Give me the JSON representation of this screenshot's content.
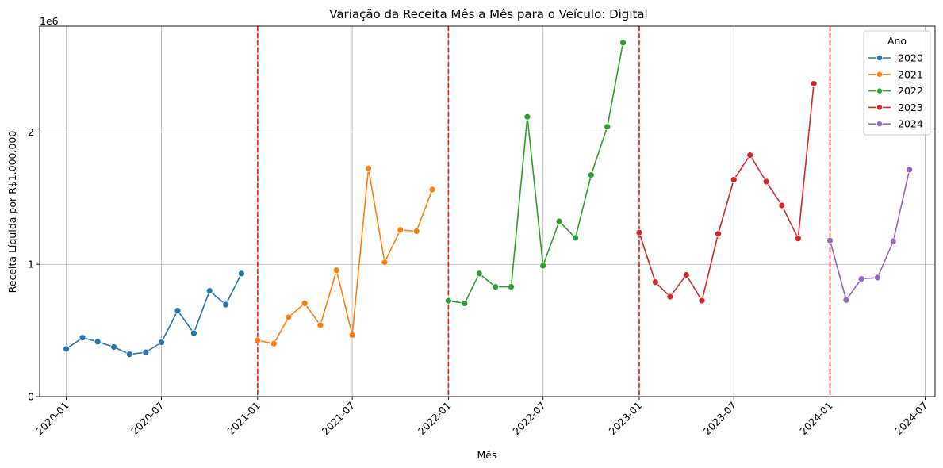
{
  "chart_data": {
    "type": "line",
    "title": "Variação da Receita Mês a Mês para o Veículo: Digital",
    "xlabel": "Mês",
    "ylabel": "Receita Líquida por R$1.000.000",
    "y_scale_note": "1e6",
    "xlim": [
      "2019-11-11",
      "2024-07-20"
    ],
    "ylim": [
      0,
      2800000
    ],
    "x_ticks": [
      "2020-01",
      "2020-07",
      "2021-01",
      "2021-07",
      "2022-01",
      "2022-07",
      "2023-01",
      "2023-07",
      "2024-01",
      "2024-07"
    ],
    "y_ticks": [
      {
        "value": 0,
        "label": "0"
      },
      {
        "value": 1000000,
        "label": "1"
      },
      {
        "value": 2000000,
        "label": "2"
      }
    ],
    "grid": true,
    "legend": {
      "title": "Ano",
      "position": "top-right"
    },
    "vlines": [
      "2021-01-01",
      "2022-01-01",
      "2023-01-01",
      "2024-01-01"
    ],
    "series": [
      {
        "name": "2020",
        "color": "#1f77b4",
        "x": [
          "2020-01-01",
          "2020-02-01",
          "2020-03-01",
          "2020-04-01",
          "2020-05-01",
          "2020-06-01",
          "2020-07-01",
          "2020-08-01",
          "2020-09-01",
          "2020-10-01",
          "2020-11-01",
          "2020-12-01"
        ],
        "values": [
          360000,
          445000,
          415000,
          375000,
          320000,
          335000,
          410000,
          650000,
          480000,
          800000,
          695000,
          930000
        ]
      },
      {
        "name": "2021",
        "color": "#ff7f0e",
        "x": [
          "2021-01-01",
          "2021-02-01",
          "2021-03-01",
          "2021-04-01",
          "2021-05-01",
          "2021-06-01",
          "2021-07-01",
          "2021-08-01",
          "2021-09-01",
          "2021-10-01",
          "2021-11-01",
          "2021-12-01"
        ],
        "values": [
          425000,
          400000,
          600000,
          705000,
          540000,
          955000,
          465000,
          1725000,
          1015000,
          1260000,
          1250000,
          1565000
        ]
      },
      {
        "name": "2022",
        "color": "#2ca02c",
        "x": [
          "2022-01-01",
          "2022-02-01",
          "2022-03-01",
          "2022-04-01",
          "2022-05-01",
          "2022-06-01",
          "2022-07-01",
          "2022-08-01",
          "2022-09-01",
          "2022-10-01",
          "2022-11-01",
          "2022-12-01"
        ],
        "values": [
          725000,
          705000,
          930000,
          830000,
          830000,
          2115000,
          990000,
          1325000,
          1200000,
          1675000,
          2040000,
          2675000
        ]
      },
      {
        "name": "2023",
        "color": "#d62728",
        "x": [
          "2023-01-01",
          "2023-02-01",
          "2023-03-01",
          "2023-04-01",
          "2023-05-01",
          "2023-06-01",
          "2023-07-01",
          "2023-08-01",
          "2023-09-01",
          "2023-10-01",
          "2023-11-01",
          "2023-12-01"
        ],
        "values": [
          1240000,
          865000,
          755000,
          920000,
          725000,
          1230000,
          1640000,
          1825000,
          1625000,
          1445000,
          1195000,
          2365000
        ]
      },
      {
        "name": "2024",
        "color": "#9467bd",
        "x": [
          "2024-01-01",
          "2024-02-01",
          "2024-03-01",
          "2024-04-01",
          "2024-05-01",
          "2024-06-01"
        ],
        "values": [
          1180000,
          730000,
          890000,
          900000,
          1175000,
          1715000
        ]
      }
    ]
  }
}
